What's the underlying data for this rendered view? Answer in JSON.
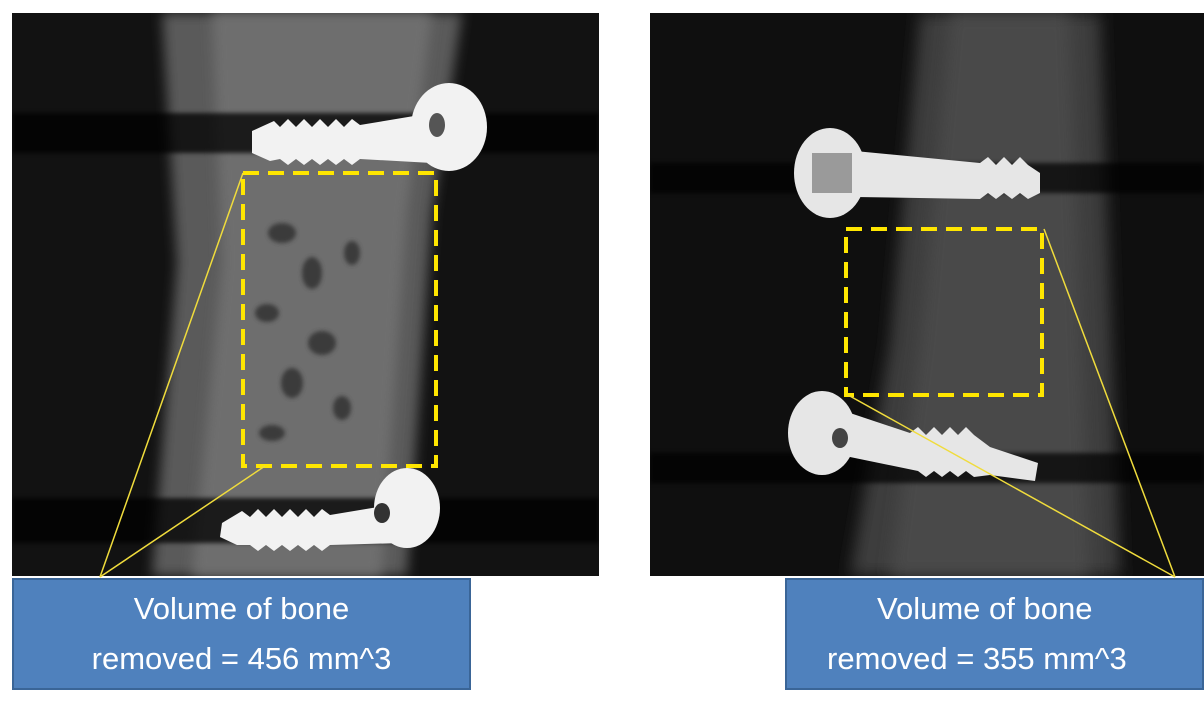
{
  "left_label": {
    "line1": "Volume of bone",
    "line2": "removed = 456 mm^3"
  },
  "right_label": {
    "line1": "Volume of bone",
    "line2": "removed = 355 mm^3"
  },
  "colors": {
    "roi_box": "#ffe600",
    "callout_fill": "#4f81bd",
    "callout_text": "#ffffff",
    "ct_background": "#101010",
    "screw": "#f2f2f2"
  }
}
